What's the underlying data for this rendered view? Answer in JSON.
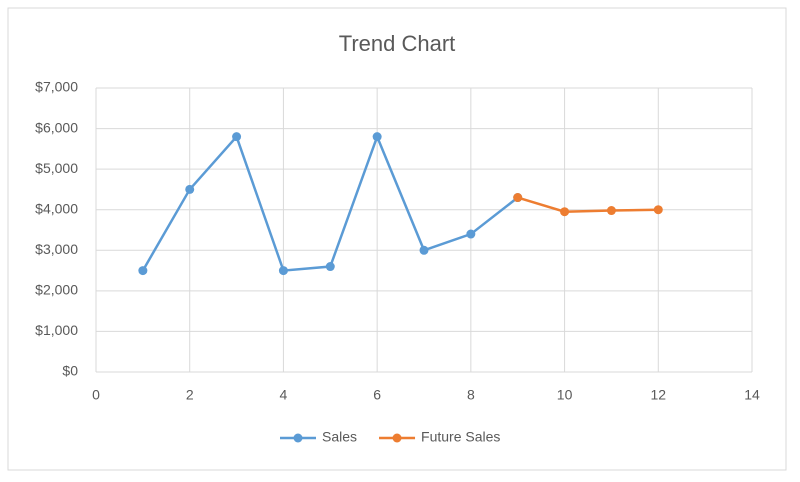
{
  "chart_data": {
    "type": "line",
    "title": "Trend Chart",
    "series": [
      {
        "name": "Sales",
        "color": "#5b9bd5",
        "x": [
          1,
          2,
          3,
          4,
          5,
          6,
          7,
          8,
          9
        ],
        "values": [
          2500,
          4500,
          5800,
          2500,
          2600,
          5800,
          3000,
          3400,
          4300
        ]
      },
      {
        "name": "Future Sales",
        "color": "#ed7d31",
        "x": [
          9,
          10,
          11,
          12
        ],
        "values": [
          4300,
          3950,
          3980,
          4000
        ]
      }
    ],
    "xlim": [
      0,
      14
    ],
    "xticks": [
      0,
      2,
      4,
      6,
      8,
      10,
      12,
      14
    ],
    "ylim": [
      0,
      7000
    ],
    "yticks": [
      {
        "value": 0,
        "label": "$0"
      },
      {
        "value": 1000,
        "label": "$1,000"
      },
      {
        "value": 2000,
        "label": "$2,000"
      },
      {
        "value": 3000,
        "label": "$3,000"
      },
      {
        "value": 4000,
        "label": "$4,000"
      },
      {
        "value": 5000,
        "label": "$5,000"
      },
      {
        "value": 6000,
        "label": "$6,000"
      },
      {
        "value": 7000,
        "label": "$7,000"
      }
    ],
    "grid": true,
    "legend": "bottom"
  }
}
